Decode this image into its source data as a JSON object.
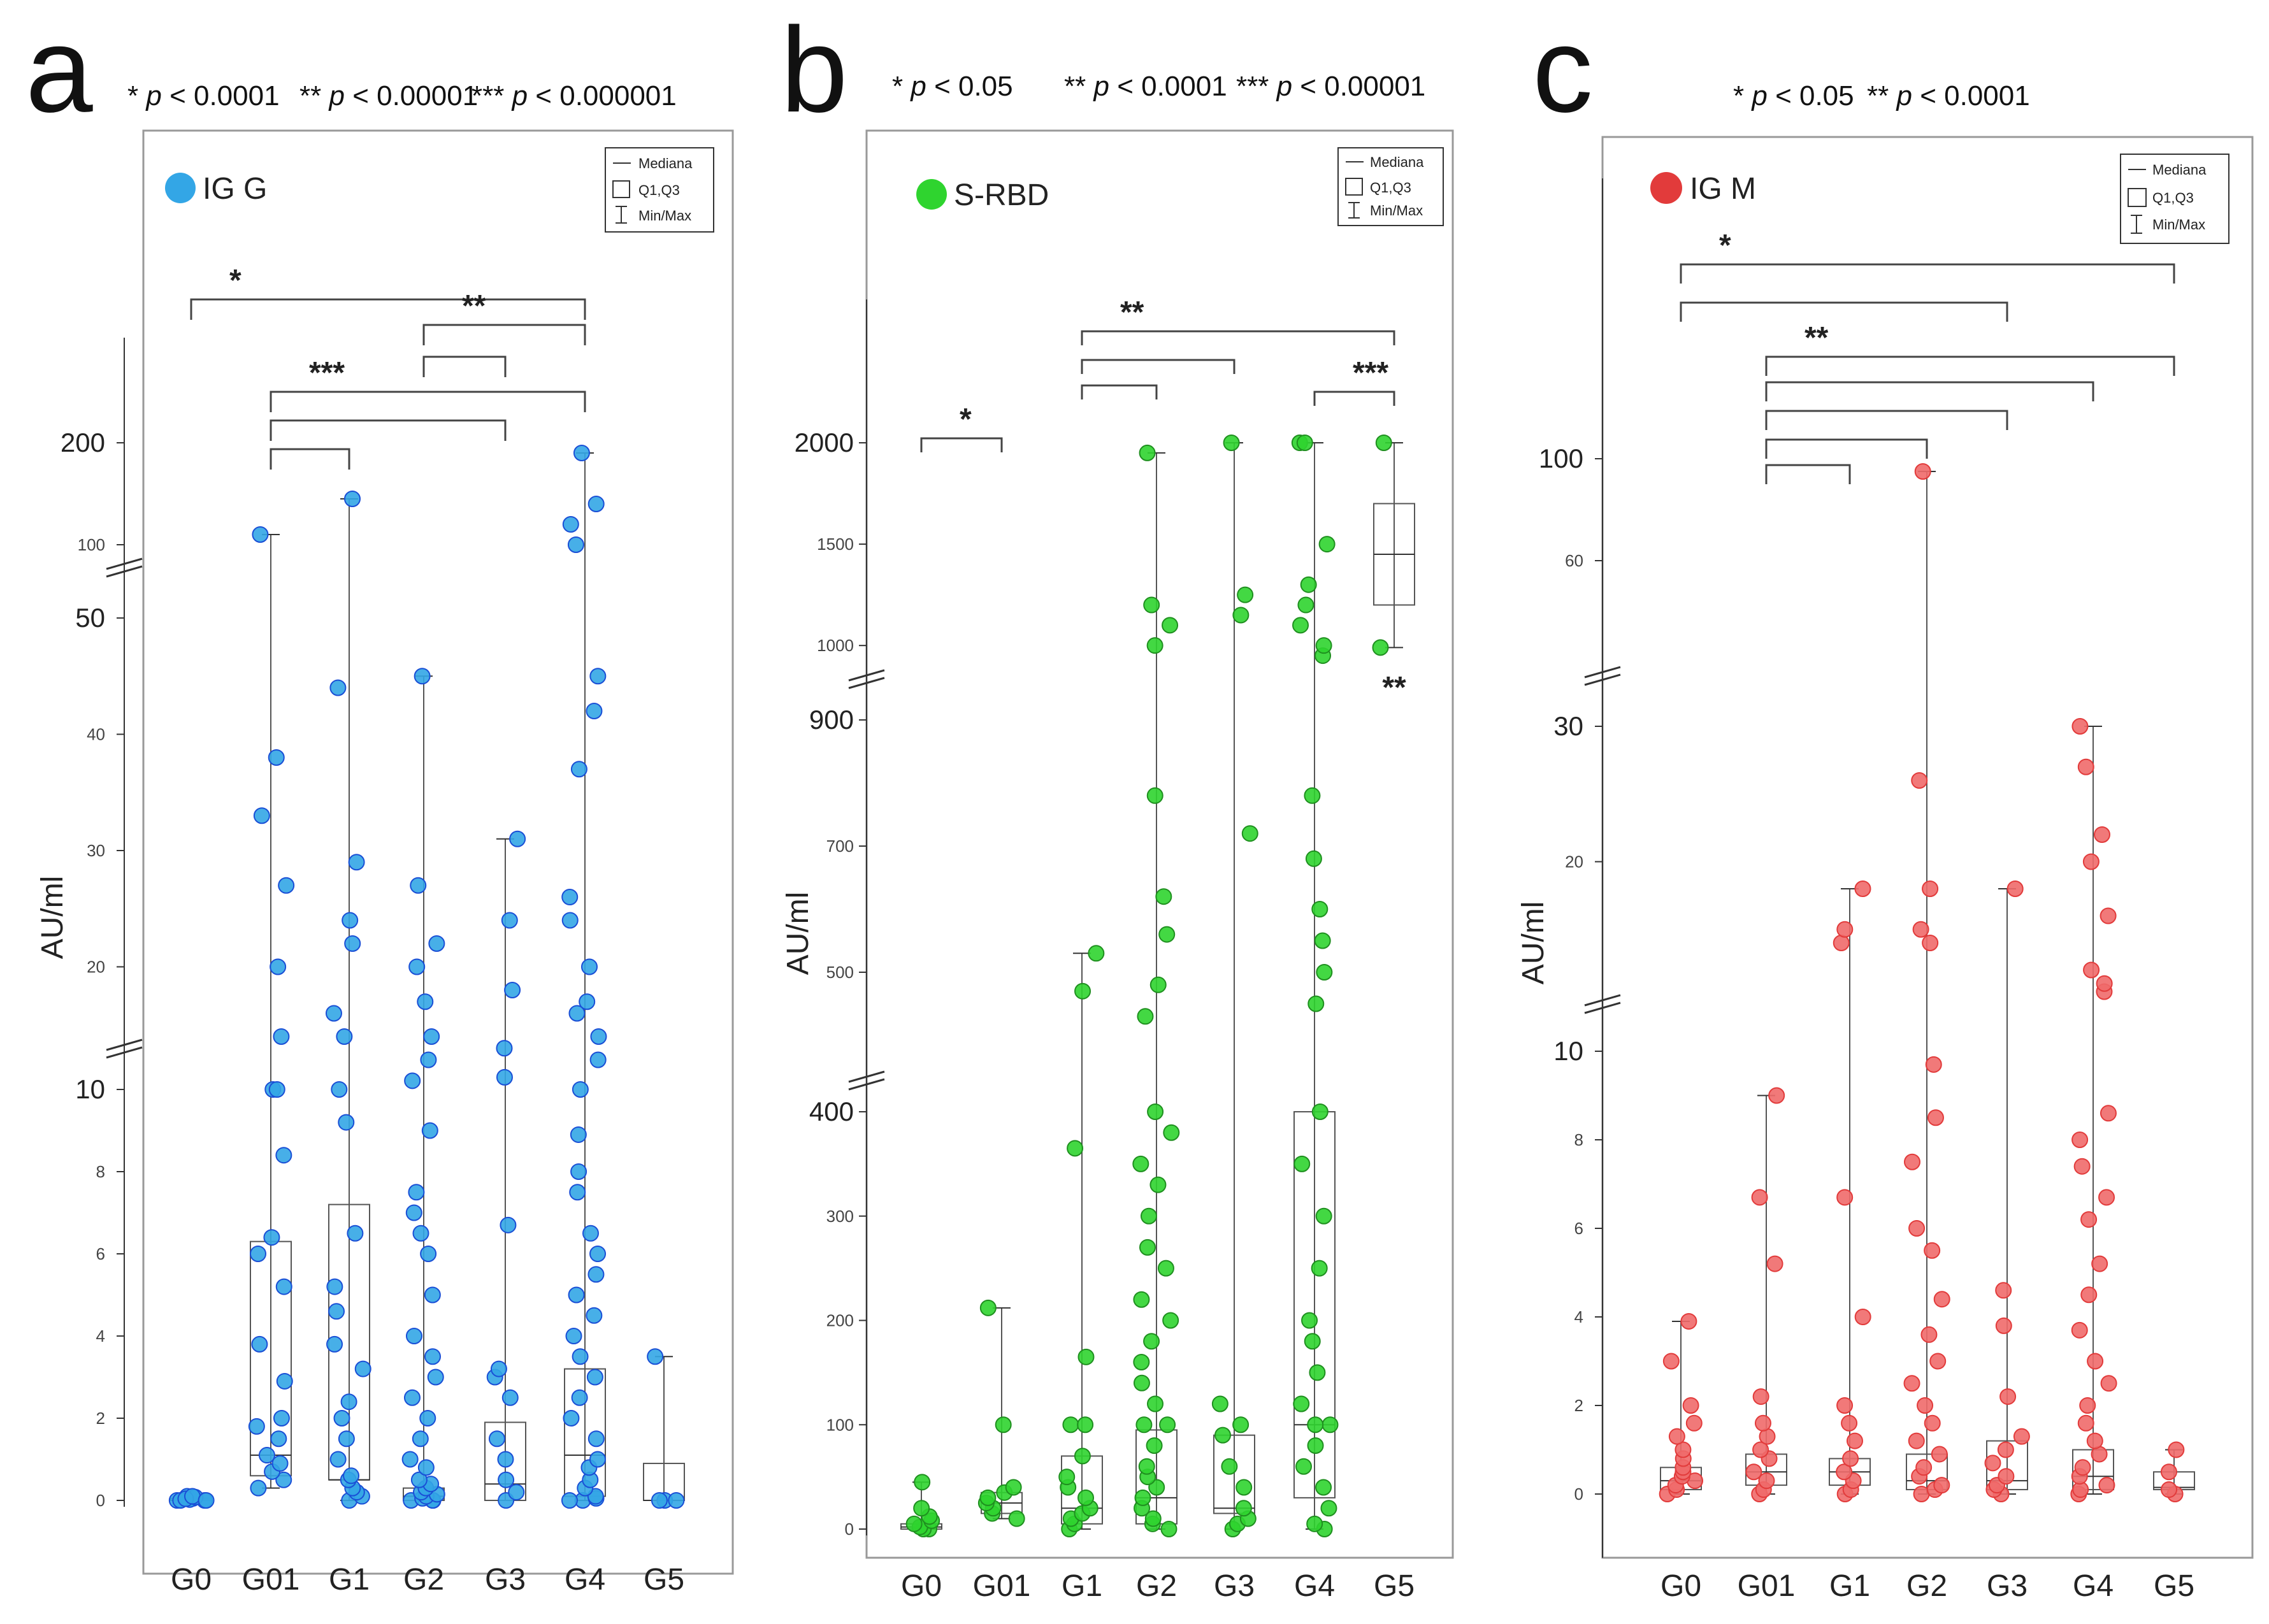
{
  "figure": {
    "legend": {
      "median": "Mediana",
      "q": "Q1,Q3",
      "minmax": "Min/Max"
    },
    "ylabel": "AU/ml",
    "categories": [
      "G0",
      "G01",
      "G1",
      "G2",
      "G3",
      "G4",
      "G5"
    ]
  },
  "chart_data": [
    {
      "type": "box-scatter",
      "panel": "a",
      "series_name": "IG G",
      "color": "#33a6e6",
      "edge": "#1a4fd6",
      "ylabel": "AU/ml",
      "categories": [
        "G0",
        "G01",
        "G1",
        "G2",
        "G3",
        "G4",
        "G5"
      ],
      "p_notes": [
        {
          "stars": "*",
          "text": "< 0.0001"
        },
        {
          "stars": "**",
          "text": "< 0.00001"
        },
        {
          "stars": "***",
          "text": "< 0.000001"
        }
      ],
      "axis_segments": [
        {
          "range": [
            0,
            10
          ],
          "ticks": [
            0,
            2,
            4,
            6,
            8,
            10
          ],
          "labels": [
            "0",
            "2",
            "4",
            "6",
            "8",
            "10"
          ],
          "major": [
            "10"
          ]
        },
        {
          "range": [
            10,
            50
          ],
          "ticks": [
            20,
            30,
            40,
            50
          ],
          "labels": [
            "20",
            "30",
            "40",
            "50"
          ],
          "major": [
            "50"
          ]
        },
        {
          "range": [
            50,
            200
          ],
          "ticks": [
            100,
            200
          ],
          "labels": [
            "100",
            "200"
          ],
          "major": [
            "200"
          ]
        }
      ],
      "boxes": [
        {
          "category": "G0",
          "min": 0,
          "q1": 0,
          "median": 0,
          "q3": 0.05,
          "max": 0.1
        },
        {
          "category": "G01",
          "min": 0.3,
          "q1": 0.6,
          "median": 1.1,
          "q3": 6.3,
          "max": 110
        },
        {
          "category": "G1",
          "min": 0,
          "q1": 0.5,
          "median": 0.5,
          "q3": 7.2,
          "max": 145
        },
        {
          "category": "G2",
          "min": 0,
          "q1": 0,
          "median": 0.1,
          "q3": 0.3,
          "max": 45
        },
        {
          "category": "G3",
          "min": 0,
          "q1": 0,
          "median": 0.4,
          "q3": 1.9,
          "max": 31
        },
        {
          "category": "G4",
          "min": 0,
          "q1": 0.1,
          "median": 1.1,
          "q3": 3.2,
          "max": 190
        },
        {
          "category": "G5",
          "min": 0,
          "q1": 0,
          "median": 0,
          "q3": 0.9,
          "max": 3.5
        }
      ],
      "points": [
        [
          0,
          0.0,
          0.05,
          0.1,
          0.02,
          0.08,
          0.0,
          0.04,
          0.1,
          0.0
        ],
        [
          0.3,
          0.5,
          0.7,
          0.9,
          1.1,
          1.5,
          1.8,
          2.0,
          2.9,
          3.8,
          5.2,
          6.0,
          6.4,
          8.4,
          10,
          10,
          14,
          20,
          27,
          33,
          38,
          110
        ],
        [
          0,
          0.1,
          0.2,
          0.3,
          0.5,
          0.6,
          1.0,
          1.5,
          2.0,
          2.4,
          3.2,
          3.8,
          4.6,
          5.2,
          6.5,
          9.2,
          10,
          14,
          16,
          22,
          24,
          29,
          44,
          145
        ],
        [
          0,
          0,
          0,
          0.05,
          0.1,
          0.15,
          0.2,
          0.3,
          0.4,
          0.5,
          0.8,
          1.0,
          1.5,
          2.0,
          2.5,
          3.0,
          3.5,
          4.0,
          5.0,
          6.0,
          6.5,
          7.0,
          7.5,
          9.0,
          10.2,
          12,
          14,
          17,
          20,
          22,
          27,
          45
        ],
        [
          0,
          0.2,
          0.5,
          1.0,
          1.5,
          2.5,
          3.0,
          3.2,
          6.7,
          10.5,
          13,
          18,
          24,
          31
        ],
        [
          0,
          0,
          0.05,
          0.1,
          0.3,
          0.5,
          0.8,
          1.0,
          1.5,
          2.0,
          2.5,
          3.0,
          3.5,
          4.0,
          4.5,
          5.0,
          5.5,
          6.0,
          6.5,
          7.5,
          8.0,
          8.9,
          10,
          12,
          14,
          16,
          17,
          20,
          24,
          26,
          37,
          42,
          45,
          100,
          120,
          140,
          190
        ],
        [
          0,
          0,
          0,
          3.5
        ]
      ],
      "brackets": [
        {
          "from": "G0",
          "to": "G4",
          "label": "*"
        },
        {
          "from": "G2",
          "to": "G4",
          "label": "**"
        },
        {
          "from": "G2",
          "to": "G3",
          "label": ""
        },
        {
          "from": "G01",
          "to": "G4",
          "label": "***"
        },
        {
          "from": "G01",
          "to": "G3",
          "label": ""
        },
        {
          "from": "G01",
          "to": "G1",
          "label": ""
        }
      ]
    },
    {
      "type": "box-scatter",
      "panel": "b",
      "series_name": "S-RBD",
      "color": "#2fd42f",
      "edge": "#1f8f1f",
      "ylabel": "AU/ml",
      "categories": [
        "G0",
        "G01",
        "G1",
        "G2",
        "G3",
        "G4",
        "G5"
      ],
      "p_notes": [
        {
          "stars": "*",
          "text": "< 0.05"
        },
        {
          "stars": "**",
          "text": "< 0.0001"
        },
        {
          "stars": "***",
          "text": "< 0.00001"
        }
      ],
      "axis_segments": [
        {
          "range": [
            0,
            400
          ],
          "ticks": [
            0,
            100,
            200,
            300,
            400
          ],
          "labels": [
            "0",
            "100",
            "200",
            "300",
            "400"
          ],
          "major": [
            "400"
          ]
        },
        {
          "range": [
            400,
            900
          ],
          "ticks": [
            500,
            700,
            900
          ],
          "labels": [
            "500",
            "700",
            "900"
          ],
          "major": [
            "900"
          ]
        },
        {
          "range": [
            900,
            2000
          ],
          "ticks": [
            1000,
            1500,
            2000
          ],
          "labels": [
            "1000",
            "1500",
            "2000"
          ],
          "major": [
            "2000"
          ]
        }
      ],
      "boxes": [
        {
          "category": "G0",
          "min": 0,
          "q1": 0,
          "median": 2,
          "q3": 5,
          "max": 45
        },
        {
          "category": "G01",
          "min": 10,
          "q1": 15,
          "median": 25,
          "q3": 35,
          "max": 212
        },
        {
          "category": "G1",
          "min": 0,
          "q1": 5,
          "median": 20,
          "q3": 70,
          "max": 530
        },
        {
          "category": "G2",
          "min": 0,
          "q1": 5,
          "median": 30,
          "q3": 95,
          "max": 1950
        },
        {
          "category": "G3",
          "min": 0,
          "q1": 15,
          "median": 20,
          "q3": 90,
          "max": 2000
        },
        {
          "category": "G4",
          "min": 0,
          "q1": 30,
          "median": 100,
          "q3": 400,
          "max": 2000
        },
        {
          "category": "G5",
          "min": 990,
          "q1": 1200,
          "median": 1450,
          "q3": 1700,
          "max": 2000
        }
      ],
      "points": [
        [
          0,
          0,
          2,
          5,
          8,
          12,
          20,
          45
        ],
        [
          10,
          15,
          20,
          25,
          30,
          35,
          40,
          100,
          212
        ],
        [
          0,
          5,
          10,
          15,
          20,
          30,
          40,
          50,
          70,
          100,
          100,
          165,
          365,
          470,
          530
        ],
        [
          0,
          5,
          10,
          20,
          30,
          40,
          50,
          60,
          80,
          100,
          100,
          120,
          140,
          160,
          180,
          200,
          220,
          250,
          270,
          300,
          330,
          350,
          380,
          400,
          430,
          480,
          560,
          620,
          780,
          1000,
          1100,
          1200,
          1950
        ],
        [
          0,
          5,
          10,
          20,
          40,
          60,
          90,
          100,
          120,
          720,
          1150,
          1250,
          2000
        ],
        [
          0,
          5,
          20,
          40,
          60,
          80,
          100,
          100,
          120,
          150,
          180,
          200,
          250,
          300,
          350,
          400,
          450,
          500,
          550,
          600,
          680,
          780,
          950,
          1000,
          1100,
          1200,
          1300,
          1500,
          2000,
          2000
        ],
        [
          990,
          2000
        ]
      ],
      "brackets": [
        {
          "from": "G0",
          "to": "G01",
          "label": "*"
        },
        {
          "from": "G1",
          "to": "G5",
          "label": "**"
        },
        {
          "from": "G1",
          "to": "G3",
          "label": ""
        },
        {
          "from": "G1",
          "to": "G2",
          "label": ""
        },
        {
          "from": "G4",
          "to": "G5",
          "label": "***"
        }
      ],
      "annotations": [
        {
          "category": "G5",
          "text": "**"
        }
      ]
    },
    {
      "type": "box-scatter",
      "panel": "c",
      "series_name": "IG M",
      "color": "#f06a6a",
      "edge": "#e23b3b",
      "ylabel": "AU/ml",
      "categories": [
        "G0",
        "G01",
        "G1",
        "G2",
        "G3",
        "G4",
        "G5"
      ],
      "p_notes": [
        {
          "stars": "*",
          "text": "< 0.05"
        },
        {
          "stars": "**",
          "text": "< 0.0001"
        }
      ],
      "axis_segments": [
        {
          "range": [
            0,
            10
          ],
          "ticks": [
            0,
            2,
            4,
            6,
            8,
            10
          ],
          "labels": [
            "0",
            "2",
            "4",
            "6",
            "8",
            "10"
          ],
          "major": [
            "10"
          ]
        },
        {
          "range": [
            10,
            30
          ],
          "ticks": [
            20,
            30
          ],
          "labels": [
            "20",
            "30"
          ],
          "major": [
            "30"
          ]
        },
        {
          "range": [
            30,
            100
          ],
          "ticks": [
            60,
            100
          ],
          "labels": [
            "60",
            "100"
          ],
          "major": [
            "100"
          ]
        }
      ],
      "boxes": [
        {
          "category": "G0",
          "min": 0,
          "q1": 0.1,
          "median": 0.3,
          "q3": 0.6,
          "max": 3.9
        },
        {
          "category": "G01",
          "min": 0,
          "q1": 0.2,
          "median": 0.5,
          "q3": 0.9,
          "max": 9.0
        },
        {
          "category": "G1",
          "min": 0,
          "q1": 0.2,
          "median": 0.5,
          "q3": 0.8,
          "max": 18
        },
        {
          "category": "G2",
          "min": 0,
          "q1": 0.1,
          "median": 0.3,
          "q3": 0.9,
          "max": 95
        },
        {
          "category": "G3",
          "min": 0,
          "q1": 0.1,
          "median": 0.3,
          "q3": 1.2,
          "max": 18
        },
        {
          "category": "G4",
          "min": 0,
          "q1": 0.1,
          "median": 0.4,
          "q3": 1.0,
          "max": 30
        },
        {
          "category": "G5",
          "min": 0,
          "q1": 0.1,
          "median": 0.15,
          "q3": 0.5,
          "max": 1.0
        }
      ],
      "points": [
        [
          0,
          0.1,
          0.2,
          0.3,
          0.4,
          0.5,
          0.6,
          0.8,
          1.0,
          1.3,
          1.6,
          2.0,
          3.0,
          3.9
        ],
        [
          0,
          0.1,
          0.3,
          0.5,
          0.8,
          1.0,
          1.3,
          1.6,
          2.2,
          5.2,
          6.7,
          9.0
        ],
        [
          0,
          0.1,
          0.3,
          0.5,
          0.8,
          1.2,
          1.6,
          2.0,
          4.0,
          6.7,
          14,
          15,
          18
        ],
        [
          0,
          0.1,
          0.2,
          0.4,
          0.6,
          0.9,
          1.2,
          1.6,
          2.0,
          2.5,
          3.0,
          3.6,
          4.4,
          5.5,
          6.0,
          7.5,
          8.5,
          9.7,
          14,
          15,
          18,
          26,
          95
        ],
        [
          0,
          0.1,
          0.2,
          0.4,
          0.7,
          1.0,
          1.3,
          2.2,
          3.8,
          4.6,
          18
        ],
        [
          0,
          0.1,
          0.2,
          0.4,
          0.6,
          0.9,
          1.2,
          1.6,
          2.0,
          2.5,
          3.0,
          3.7,
          4.5,
          5.2,
          6.2,
          6.7,
          7.4,
          8.0,
          8.6,
          10.4,
          11,
          12,
          16,
          20,
          22,
          27,
          30
        ],
        [
          0,
          0.1,
          0.5,
          1.0
        ]
      ],
      "brackets": [
        {
          "from": "G0",
          "to": "G5",
          "label": "*"
        },
        {
          "from": "G0",
          "to": "G3",
          "label": ""
        },
        {
          "from": "G01",
          "to": "G5",
          "label": "**"
        },
        {
          "from": "G01",
          "to": "G4",
          "label": ""
        },
        {
          "from": "G01",
          "to": "G3",
          "label": ""
        },
        {
          "from": "G01",
          "to": "G2",
          "label": ""
        },
        {
          "from": "G01",
          "to": "G1",
          "label": ""
        }
      ]
    }
  ]
}
